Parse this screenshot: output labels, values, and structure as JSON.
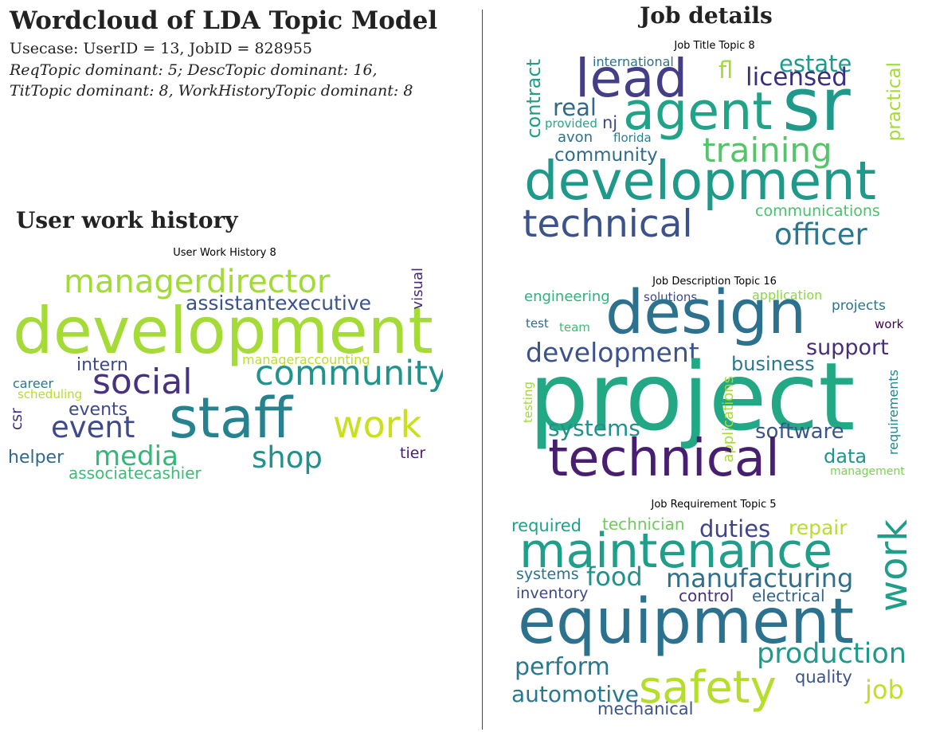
{
  "header": {
    "title": "Wordcloud of LDA Topic Model",
    "usecase": "Usecase: UserID = 13, JobID = 828955",
    "topics_line1": "ReqTopic dominant: 5; DescTopic dominant: 16,",
    "topics_line2": "TitTopic dominant: 8,  WorkHistoryTopic dominant: 8"
  },
  "user_section": {
    "heading": "User work history"
  },
  "job_section": {
    "heading": "Job details"
  },
  "clouds": [
    {
      "id": "work-history",
      "title": "User Work History 8",
      "words": [
        {
          "text": "managerdirector",
          "color": "#a2da37"
        },
        {
          "text": "development",
          "color": "#a5db36"
        },
        {
          "text": "assistantexecutive",
          "color": "#3b528b"
        },
        {
          "text": "visual",
          "color": "#482878"
        },
        {
          "text": "intern",
          "color": "#3e4989"
        },
        {
          "text": "manageraccounting",
          "color": "#bddf26"
        },
        {
          "text": "community",
          "color": "#1f948c"
        },
        {
          "text": "social",
          "color": "#46327e"
        },
        {
          "text": "career",
          "color": "#2a788e"
        },
        {
          "text": "scheduling",
          "color": "#b5de2b"
        },
        {
          "text": "csr",
          "color": "#46337f"
        },
        {
          "text": "events",
          "color": "#3e4989"
        },
        {
          "text": "event",
          "color": "#3e4a89"
        },
        {
          "text": "staff",
          "color": "#26828e"
        },
        {
          "text": "work",
          "color": "#c8e020"
        },
        {
          "text": "helper",
          "color": "#31688e"
        },
        {
          "text": "media",
          "color": "#35b779"
        },
        {
          "text": "shop",
          "color": "#21918c"
        },
        {
          "text": "tier",
          "color": "#482173"
        },
        {
          "text": "associatecashier",
          "color": "#3dbc74"
        }
      ]
    },
    {
      "id": "job-title",
      "title": "Job Title Topic 8",
      "words": [
        {
          "text": "international",
          "color": "#2c728e"
        },
        {
          "text": "lead",
          "color": "#433e85"
        },
        {
          "text": "estate",
          "color": "#1e9b8a"
        },
        {
          "text": "fl",
          "color": "#a2da37"
        },
        {
          "text": "licensed",
          "color": "#3b2f80"
        },
        {
          "text": "contract",
          "color": "#1f9e89"
        },
        {
          "text": "real",
          "color": "#31688e"
        },
        {
          "text": "agent",
          "color": "#20a386"
        },
        {
          "text": "sr",
          "color": "#1f9a8a"
        },
        {
          "text": "practical",
          "color": "#a5db36"
        },
        {
          "text": "provided",
          "color": "#22a884"
        },
        {
          "text": "nj",
          "color": "#3e4989"
        },
        {
          "text": "avon",
          "color": "#2c718e"
        },
        {
          "text": "florida",
          "color": "#277f8e"
        },
        {
          "text": "training",
          "color": "#54c568"
        },
        {
          "text": "community",
          "color": "#2f6c8e"
        },
        {
          "text": "development",
          "color": "#1f9a8a"
        },
        {
          "text": "communications",
          "color": "#4ac16d"
        },
        {
          "text": "technical",
          "color": "#3b528b"
        },
        {
          "text": "officer",
          "color": "#2a788e"
        }
      ]
    },
    {
      "id": "job-description",
      "title": "Job Description Topic 16",
      "words": [
        {
          "text": "engineering",
          "color": "#2db27d"
        },
        {
          "text": "solutions",
          "color": "#3e4989"
        },
        {
          "text": "application",
          "color": "#8ed645"
        },
        {
          "text": "projects",
          "color": "#2c738e"
        },
        {
          "text": "design",
          "color": "#2c728e"
        },
        {
          "text": "test",
          "color": "#31688e"
        },
        {
          "text": "team",
          "color": "#3dbc74"
        },
        {
          "text": "work",
          "color": "#440154"
        },
        {
          "text": "development",
          "color": "#3b528b"
        },
        {
          "text": "support",
          "color": "#472d7b"
        },
        {
          "text": "business",
          "color": "#2a788e"
        },
        {
          "text": "project",
          "color": "#22a884"
        },
        {
          "text": "applications",
          "color": "#a8db34"
        },
        {
          "text": "requirements",
          "color": "#25848e"
        },
        {
          "text": "testing",
          "color": "#a0da39"
        },
        {
          "text": "systems",
          "color": "#21918c"
        },
        {
          "text": "software",
          "color": "#39568c"
        },
        {
          "text": "technical",
          "color": "#481f70"
        },
        {
          "text": "data",
          "color": "#1f958b"
        },
        {
          "text": "management",
          "color": "#7ad151"
        }
      ]
    },
    {
      "id": "job-requirement",
      "title": "Job Requirement Topic 5",
      "words": [
        {
          "text": "required",
          "color": "#1fa188"
        },
        {
          "text": "technician",
          "color": "#6ccd5a"
        },
        {
          "text": "duties",
          "color": "#414487"
        },
        {
          "text": "repair",
          "color": "#b8de29"
        },
        {
          "text": "maintenance",
          "color": "#1f9e89"
        },
        {
          "text": "work",
          "color": "#1f9e89"
        },
        {
          "text": "systems",
          "color": "#2c728e"
        },
        {
          "text": "food",
          "color": "#20928c"
        },
        {
          "text": "manufacturing",
          "color": "#2d708e"
        },
        {
          "text": "inventory",
          "color": "#3e4989"
        },
        {
          "text": "control",
          "color": "#46327e"
        },
        {
          "text": "electrical",
          "color": "#33638d"
        },
        {
          "text": "equipment",
          "color": "#2c728e"
        },
        {
          "text": "perform",
          "color": "#2a788e"
        },
        {
          "text": "production",
          "color": "#1f9a8a"
        },
        {
          "text": "safety",
          "color": "#b5de2b"
        },
        {
          "text": "quality",
          "color": "#3b528b"
        },
        {
          "text": "automotive",
          "color": "#29798e"
        },
        {
          "text": "job",
          "color": "#c2df23"
        },
        {
          "text": "mechanical",
          "color": "#3b528b"
        }
      ]
    }
  ]
}
